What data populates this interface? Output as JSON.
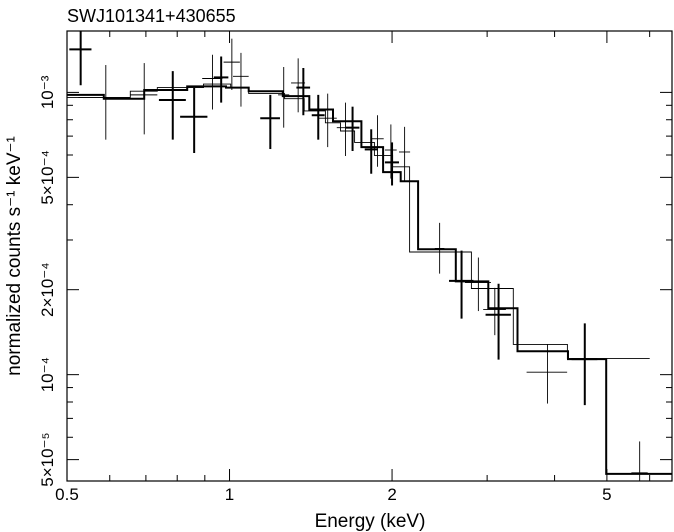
{
  "chart_data": {
    "type": "scatter",
    "title": "SWJ101341+430655",
    "xlabel": "Energy (keV)",
    "ylabel": "normalized counts s⁻¹ keV⁻¹",
    "x_scale": "log",
    "y_scale": "log",
    "xlim": [
      0.5,
      6.6
    ],
    "ylim": [
      4.2e-05,
      0.00165
    ],
    "x_ticks": [
      {
        "value": 0.5,
        "label": "0.5"
      },
      {
        "value": 1,
        "label": "1"
      },
      {
        "value": 2,
        "label": "2"
      },
      {
        "value": 5,
        "label": "5"
      }
    ],
    "y_ticks": [
      {
        "value": 5e-05,
        "label": "5×10⁻⁵"
      },
      {
        "value": 0.0001,
        "label": "10⁻⁴"
      },
      {
        "value": 0.0002,
        "label": "2×10⁻⁴"
      },
      {
        "value": 0.0005,
        "label": "5×10⁻⁴"
      },
      {
        "value": 0.001,
        "label": "10⁻³"
      }
    ],
    "series": [
      {
        "style": "thick",
        "points": [
          {
            "x": 0.53,
            "xerr": [
              0.505,
              0.555
            ],
            "y": 0.00142,
            "yerr": [
              0.00106,
              0.00165
            ]
          },
          {
            "x": 0.785,
            "xerr": [
              0.74,
              0.83
            ],
            "y": 0.00094,
            "yerr": [
              0.00068,
              0.00119
            ]
          },
          {
            "x": 0.86,
            "xerr": [
              0.81,
              0.91
            ],
            "y": 0.00082,
            "yerr": [
              0.00061,
              0.00104
            ]
          },
          {
            "x": 0.965,
            "xerr": [
              0.935,
              0.995
            ],
            "y": 0.00113,
            "yerr": [
              0.00092,
              0.00134
            ]
          },
          {
            "x": 1.19,
            "xerr": [
              1.14,
              1.24
            ],
            "y": 0.00081,
            "yerr": [
              0.00063,
              0.00098
            ]
          },
          {
            "x": 1.37,
            "xerr": [
              1.33,
              1.41
            ],
            "y": 0.00104,
            "yerr": [
              0.00083,
              0.00122
            ]
          },
          {
            "x": 1.46,
            "xerr": [
              1.42,
              1.5
            ],
            "y": 0.00083,
            "yerr": [
              0.00068,
              0.00098
            ]
          },
          {
            "x": 1.69,
            "xerr": [
              1.64,
              1.74
            ],
            "y": 0.00075,
            "yerr": [
              0.00062,
              0.00089
            ]
          },
          {
            "x": 1.83,
            "xerr": [
              1.78,
              1.88
            ],
            "y": 0.000628,
            "yerr": [
              0.000515,
              0.00074
            ]
          },
          {
            "x": 2.0,
            "xerr": [
              1.94,
              2.06
            ],
            "y": 0.000565,
            "yerr": [
              0.000468,
              0.000665
            ]
          },
          {
            "x": 2.69,
            "xerr": [
              2.55,
              2.83
            ],
            "y": 0.000215,
            "yerr": [
              0.000158,
              0.000275
            ]
          },
          {
            "x": 3.15,
            "xerr": [
              2.98,
              3.32
            ],
            "y": 0.000163,
            "yerr": [
              0.000113,
              0.00021
            ]
          },
          {
            "x": 4.55,
            "xerr": [
              4.3,
              4.8
            ],
            "y": 0.0001135,
            "yerr": [
              7.8e-05,
              0.000152
            ]
          }
        ],
        "model_steps": [
          {
            "x0": 0.5,
            "x1": 0.585,
            "y": 0.00098
          },
          {
            "x0": 0.585,
            "x1": 0.695,
            "y": 0.00095
          },
          {
            "x0": 0.695,
            "x1": 0.835,
            "y": 0.00102
          },
          {
            "x0": 0.835,
            "x1": 0.985,
            "y": 0.00105
          },
          {
            "x0": 0.985,
            "x1": 1.085,
            "y": 0.00104
          },
          {
            "x0": 1.085,
            "x1": 1.255,
            "y": 0.00101
          },
          {
            "x0": 1.255,
            "x1": 1.405,
            "y": 0.00097
          },
          {
            "x0": 1.405,
            "x1": 1.555,
            "y": 0.00087
          },
          {
            "x0": 1.555,
            "x1": 1.755,
            "y": 0.00079
          },
          {
            "x0": 1.755,
            "x1": 1.925,
            "y": 0.00064
          },
          {
            "x0": 1.925,
            "x1": 2.075,
            "y": 0.000522
          },
          {
            "x0": 2.075,
            "x1": 2.235,
            "y": 0.000484
          },
          {
            "x0": 2.235,
            "x1": 2.625,
            "y": 0.000278
          },
          {
            "x0": 2.625,
            "x1": 3.015,
            "y": 0.000214
          },
          {
            "x0": 3.015,
            "x1": 3.415,
            "y": 0.000172
          },
          {
            "x0": 3.415,
            "x1": 4.235,
            "y": 0.000121
          },
          {
            "x0": 4.235,
            "x1": 4.985,
            "y": 0.0001135
          },
          {
            "x0": 4.985,
            "x1": 6.6,
            "y": 4.45e-05
          }
        ]
      },
      {
        "style": "thin",
        "points": [
          {
            "x": 0.59,
            "xerr": [
              0.525,
              0.655
            ],
            "y": 0.00096,
            "yerr": [
              0.00068,
              0.00125
            ]
          },
          {
            "x": 0.695,
            "xerr": [
              0.655,
              0.735
            ],
            "y": 0.00098,
            "yerr": [
              0.00071,
              0.00127
            ]
          },
          {
            "x": 0.93,
            "xerr": [
              0.89,
              0.97
            ],
            "y": 0.00112,
            "yerr": [
              0.00087,
              0.00136
            ]
          },
          {
            "x": 1.01,
            "xerr": [
              0.975,
              1.045
            ],
            "y": 0.00128,
            "yerr": [
              0.00102,
              0.00155
            ]
          },
          {
            "x": 1.05,
            "xerr": [
              1.015,
              1.085
            ],
            "y": 0.00114,
            "yerr": [
              0.00089,
              0.00138
            ]
          },
          {
            "x": 1.26,
            "xerr": [
              1.23,
              1.29
            ],
            "y": 0.00098,
            "yerr": [
              0.00075,
              0.00123
            ]
          },
          {
            "x": 1.34,
            "xerr": [
              1.3,
              1.38
            ],
            "y": 0.00108,
            "yerr": [
              0.00085,
              0.00132
            ]
          },
          {
            "x": 1.52,
            "xerr": [
              1.46,
              1.58
            ],
            "y": 0.00081,
            "yerr": [
              0.00064,
              0.00099
            ]
          },
          {
            "x": 1.64,
            "xerr": [
              1.58,
              1.7
            ],
            "y": 0.00075,
            "yerr": [
              0.000595,
              0.00092
            ]
          },
          {
            "x": 1.88,
            "xerr": [
              1.83,
              1.93
            ],
            "y": 0.000685,
            "yerr": [
              0.000545,
              0.00083
            ]
          },
          {
            "x": 1.99,
            "xerr": [
              1.94,
              2.04
            ],
            "y": 0.000625,
            "yerr": [
              0.000495,
              0.00077
            ]
          },
          {
            "x": 2.11,
            "xerr": [
              2.06,
              2.16
            ],
            "y": 0.000615,
            "yerr": [
              0.000485,
              0.000755
            ]
          },
          {
            "x": 2.45,
            "xerr": [
              2.4,
              2.5
            ],
            "y": 0.00028,
            "yerr": [
              0.000228,
              0.000345
            ]
          },
          {
            "x": 2.89,
            "xerr": [
              2.73,
              3.05
            ],
            "y": 0.000212,
            "yerr": [
              0.000168,
              0.00026
            ]
          },
          {
            "x": 3.1,
            "xerr": [
              2.95,
              3.25
            ],
            "y": 0.00017,
            "yerr": [
              0.000138,
              0.000203
            ]
          },
          {
            "x": 3.88,
            "xerr": [
              3.55,
              4.22
            ],
            "y": 0.000102,
            "yerr": [
              7.9e-05,
              0.000128
            ]
          },
          {
            "x": 5.75,
            "xerr": [
              5.55,
              5.95
            ],
            "y": 4.49e-05,
            "yerr": [
              4.2e-05,
              5.8e-05
            ]
          }
        ],
        "model_steps": [
          {
            "x0": 0.5,
            "x1": 0.655,
            "y": 0.00096
          },
          {
            "x0": 0.655,
            "x1": 0.735,
            "y": 0.00101
          },
          {
            "x0": 0.735,
            "x1": 0.895,
            "y": 0.00104
          },
          {
            "x0": 0.895,
            "x1": 1.005,
            "y": 0.00107
          },
          {
            "x0": 1.005,
            "x1": 1.085,
            "y": 0.00104
          },
          {
            "x0": 1.085,
            "x1": 1.265,
            "y": 0.00099
          },
          {
            "x0": 1.265,
            "x1": 1.375,
            "y": 0.00095
          },
          {
            "x0": 1.375,
            "x1": 1.505,
            "y": 0.00086
          },
          {
            "x0": 1.505,
            "x1": 1.605,
            "y": 0.00078
          },
          {
            "x0": 1.605,
            "x1": 1.705,
            "y": 0.00073
          },
          {
            "x0": 1.705,
            "x1": 1.855,
            "y": 0.000665
          },
          {
            "x0": 1.855,
            "x1": 2.005,
            "y": 0.000598
          },
          {
            "x0": 2.005,
            "x1": 2.155,
            "y": 0.000545
          },
          {
            "x0": 2.155,
            "x1": 2.805,
            "y": 0.000272
          },
          {
            "x0": 2.805,
            "x1": 3.355,
            "y": 0.000202
          },
          {
            "x0": 3.355,
            "x1": 4.225,
            "y": 0.000128
          },
          {
            "x0": 4.225,
            "x1": 6.0,
            "y": 0.000114
          }
        ]
      }
    ]
  }
}
